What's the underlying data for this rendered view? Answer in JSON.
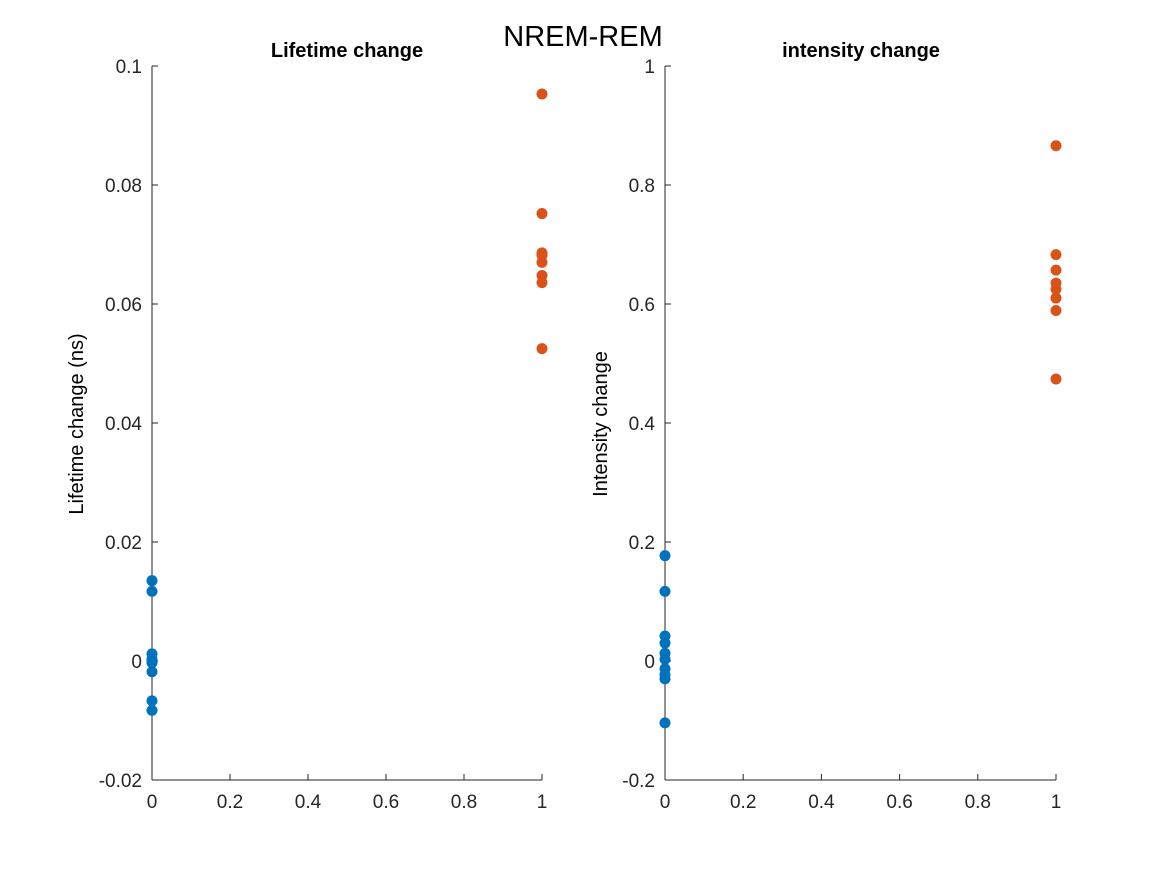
{
  "figure": {
    "super_title": "NREM-REM"
  },
  "chart_data": [
    {
      "type": "scatter",
      "title": "Lifetime change",
      "xlabel": "",
      "ylabel": "Lifetime change (ns)",
      "xlim": [
        0,
        1
      ],
      "ylim": [
        -0.02,
        0.1
      ],
      "xticks": [
        0,
        0.2,
        0.4,
        0.6,
        0.8,
        1
      ],
      "xtick_labels": [
        "0",
        "0.2",
        "0.4",
        "0.6",
        "0.8",
        "1"
      ],
      "yticks": [
        -0.02,
        0,
        0.02,
        0.04,
        0.06,
        0.08,
        0.1
      ],
      "ytick_labels": [
        "-0.02",
        "0",
        "0.02",
        "0.04",
        "0.06",
        "0.08",
        "0.1"
      ],
      "grid": false,
      "series": [
        {
          "color": "#0072BD",
          "x": [
            0,
            0,
            0,
            0,
            0,
            0,
            0,
            0,
            0
          ],
          "y": [
            0.0135,
            0.0117,
            0.0012,
            0.0003,
            -0.0003,
            -0.0018,
            -0.0067,
            -0.0083,
            0.0
          ]
        },
        {
          "color": "#D95319",
          "x": [
            1,
            1,
            1,
            1,
            1,
            1,
            1,
            1
          ],
          "y": [
            0.0953,
            0.0752,
            0.0686,
            0.067,
            0.0648,
            0.0636,
            0.0525,
            0.0682
          ]
        }
      ]
    },
    {
      "type": "scatter",
      "title": "intensity change",
      "xlabel": "",
      "ylabel": "Intensity change",
      "xlim": [
        0,
        1
      ],
      "ylim": [
        -0.2,
        1
      ],
      "xticks": [
        0,
        0.2,
        0.4,
        0.6,
        0.8,
        1
      ],
      "xtick_labels": [
        "0",
        "0.2",
        "0.4",
        "0.6",
        "0.8",
        "1"
      ],
      "yticks": [
        -0.2,
        0,
        0.2,
        0.4,
        0.6,
        0.8,
        1
      ],
      "ytick_labels": [
        "-0.2",
        "0",
        "0.2",
        "0.4",
        "0.6",
        "0.8",
        "1"
      ],
      "grid": false,
      "series": [
        {
          "color": "#0072BD",
          "x": [
            0,
            0,
            0,
            0,
            0,
            0,
            0,
            0,
            0,
            0
          ],
          "y": [
            0.177,
            0.117,
            0.042,
            0.03,
            0.013,
            0.003,
            -0.013,
            -0.023,
            -0.03,
            -0.104
          ]
        },
        {
          "color": "#D95319",
          "x": [
            1,
            1,
            1,
            1,
            1,
            1,
            1,
            1
          ],
          "y": [
            0.866,
            0.683,
            0.657,
            0.635,
            0.625,
            0.61,
            0.589,
            0.474
          ]
        }
      ]
    }
  ]
}
